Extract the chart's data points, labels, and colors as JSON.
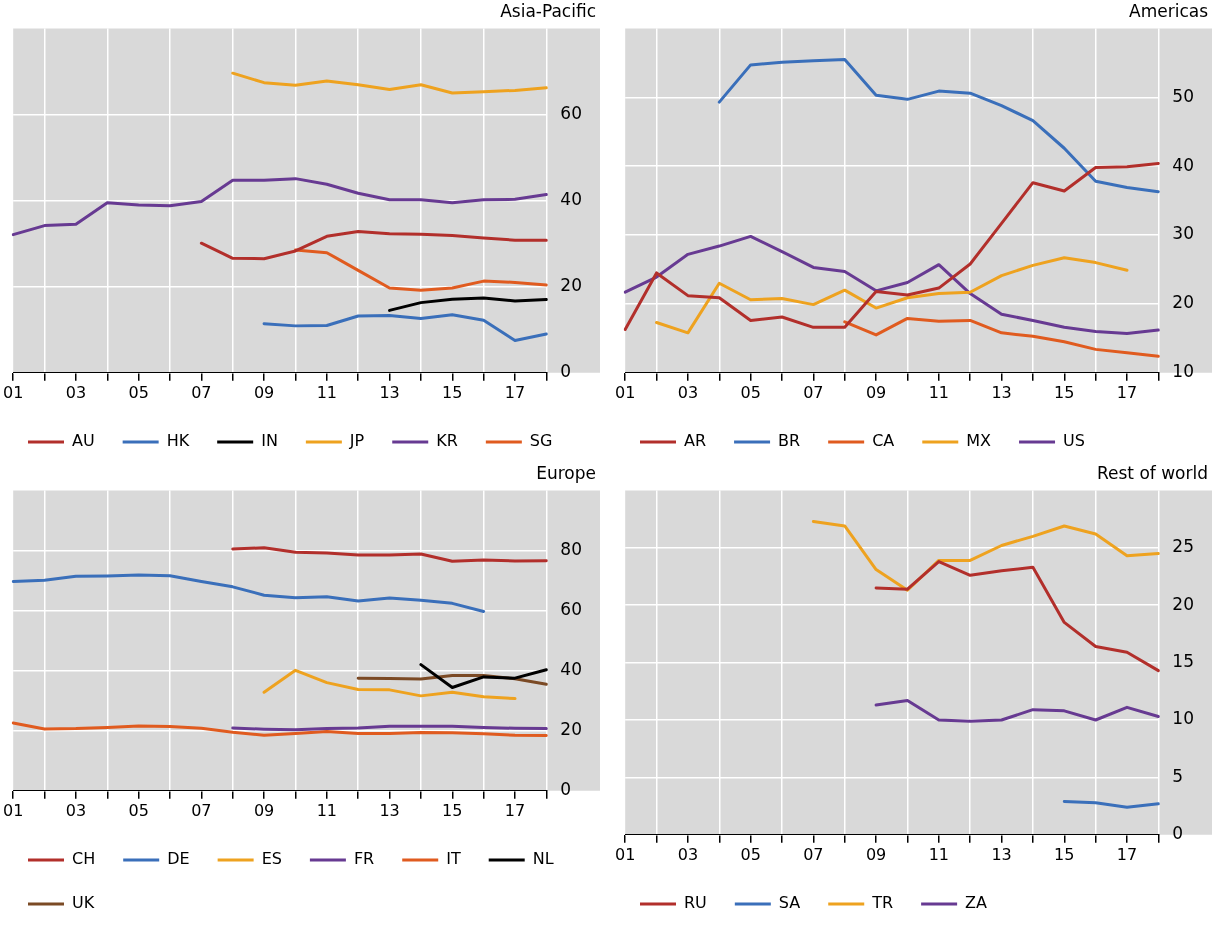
{
  "chart_data": [
    {
      "type": "line",
      "title": "Asia-Pacific",
      "categories": [
        "01",
        null,
        "03",
        null,
        "05",
        null,
        "07",
        null,
        "09",
        null,
        "11",
        null,
        "13",
        null,
        "15",
        null,
        "17",
        null
      ],
      "ylim": [
        0,
        80
      ],
      "yticks": [
        0,
        20,
        40,
        60
      ],
      "grid": true,
      "legend": "bottom",
      "series": [
        {
          "name": "AU",
          "color": "#b22f2b",
          "values": [
            null,
            null,
            null,
            null,
            null,
            null,
            30.1,
            26.6,
            26.5,
            28.3,
            31.7,
            32.8,
            32.3,
            32.2,
            31.9,
            31.3,
            30.8,
            30.8
          ]
        },
        {
          "name": "HK",
          "color": "#3a6fba",
          "values": [
            null,
            null,
            null,
            null,
            null,
            null,
            null,
            null,
            11.4,
            10.9,
            11.0,
            13.2,
            13.3,
            12.6,
            13.5,
            12.2,
            7.5,
            9.0
          ]
        },
        {
          "name": "IN",
          "color": "#000000",
          "values": [
            null,
            null,
            null,
            null,
            null,
            null,
            null,
            null,
            null,
            null,
            null,
            null,
            14.5,
            16.3,
            17.1,
            17.4,
            16.7,
            17.0
          ]
        },
        {
          "name": "JP",
          "color": "#eea21f",
          "values": [
            null,
            null,
            null,
            null,
            null,
            null,
            null,
            69.6,
            67.4,
            66.8,
            67.8,
            66.9,
            65.8,
            66.9,
            65.0,
            65.3,
            65.6,
            66.2
          ]
        },
        {
          "name": "KR",
          "color": "#673a92",
          "values": [
            32.1,
            34.2,
            34.5,
            39.5,
            39.0,
            38.8,
            39.8,
            44.7,
            44.7,
            45.1,
            43.8,
            41.7,
            40.2,
            40.2,
            39.5,
            40.2,
            40.3,
            41.4
          ]
        },
        {
          "name": "SG",
          "color": "#e05b1f",
          "values": [
            null,
            null,
            null,
            null,
            null,
            null,
            null,
            null,
            null,
            28.5,
            27.9,
            23.8,
            19.7,
            19.2,
            19.7,
            21.3,
            21.0,
            20.4
          ]
        }
      ]
    },
    {
      "type": "line",
      "title": "Americas",
      "categories": [
        "01",
        null,
        "03",
        null,
        "05",
        null,
        "07",
        null,
        "09",
        null,
        "11",
        null,
        "13",
        null,
        "15",
        null,
        "17",
        null
      ],
      "ylim": [
        10,
        60
      ],
      "yticks": [
        10,
        20,
        30,
        40,
        50
      ],
      "grid": true,
      "legend": "bottom",
      "series": [
        {
          "name": "AR",
          "color": "#b22f2b",
          "values": [
            16.3,
            24.5,
            21.2,
            20.9,
            17.6,
            18.1,
            16.6,
            16.6,
            21.8,
            21.3,
            22.3,
            25.8,
            31.7,
            37.6,
            36.4,
            39.8,
            39.9,
            40.4
          ]
        },
        {
          "name": "BR",
          "color": "#3a6fba",
          "values": [
            null,
            null,
            null,
            49.3,
            54.7,
            55.1,
            55.3,
            55.5,
            50.3,
            49.7,
            50.9,
            50.6,
            48.8,
            46.6,
            42.6,
            37.8,
            36.9,
            36.3
          ]
        },
        {
          "name": "CA",
          "color": "#e05b1f",
          "values": [
            null,
            null,
            null,
            null,
            null,
            null,
            null,
            17.4,
            15.5,
            17.9,
            17.5,
            17.6,
            15.8,
            15.3,
            14.5,
            13.4,
            12.9,
            12.4
          ]
        },
        {
          "name": "MX",
          "color": "#eea21f",
          "values": [
            null,
            17.3,
            15.8,
            23.0,
            20.6,
            20.8,
            19.9,
            22.0,
            19.4,
            20.9,
            21.5,
            21.7,
            24.1,
            25.6,
            26.7,
            26.0,
            24.9,
            null
          ]
        },
        {
          "name": "US",
          "color": "#673a92",
          "values": [
            21.7,
            23.9,
            27.2,
            28.4,
            29.8,
            27.6,
            25.3,
            24.7,
            21.9,
            23.1,
            25.7,
            21.5,
            18.5,
            17.6,
            16.6,
            16.0,
            15.7,
            16.2
          ]
        }
      ]
    },
    {
      "type": "line",
      "title": "Europe",
      "categories": [
        "01",
        null,
        "03",
        null,
        "05",
        null,
        "07",
        null,
        "09",
        null,
        "11",
        null,
        "13",
        null,
        "15",
        null,
        "17",
        null
      ],
      "ylim": [
        0,
        100
      ],
      "yticks": [
        0,
        20,
        40,
        60,
        80
      ],
      "grid": true,
      "legend": "bottom",
      "series": [
        {
          "name": "CH",
          "color": "#b22f2b",
          "values": [
            null,
            null,
            null,
            null,
            null,
            null,
            null,
            80.5,
            80.9,
            79.4,
            79.2,
            78.5,
            78.5,
            78.8,
            76.4,
            76.8,
            76.5,
            76.6
          ]
        },
        {
          "name": "DE",
          "color": "#3a6fba",
          "values": [
            69.7,
            70.1,
            71.4,
            71.5,
            71.8,
            71.6,
            69.7,
            67.9,
            65.1,
            64.3,
            64.6,
            63.2,
            64.2,
            63.4,
            62.4,
            59.7,
            null,
            null
          ]
        },
        {
          "name": "ES",
          "color": "#eea21f",
          "values": [
            null,
            null,
            null,
            null,
            null,
            null,
            null,
            null,
            32.8,
            40.1,
            36.0,
            33.7,
            33.6,
            31.6,
            32.8,
            31.3,
            30.7,
            null
          ]
        },
        {
          "name": "FR",
          "color": "#673a92",
          "values": [
            null,
            null,
            null,
            null,
            null,
            null,
            null,
            20.9,
            20.5,
            20.3,
            20.7,
            20.9,
            21.5,
            21.5,
            21.5,
            21.1,
            20.8,
            20.7
          ]
        },
        {
          "name": "IT",
          "color": "#e05b1f",
          "values": [
            22.6,
            20.6,
            20.7,
            21.1,
            21.6,
            21.4,
            20.8,
            19.5,
            18.5,
            19.1,
            19.7,
            19.1,
            19.1,
            19.4,
            19.3,
            19.0,
            18.5,
            18.4
          ]
        },
        {
          "name": "NL",
          "color": "#000000",
          "values": [
            null,
            null,
            null,
            null,
            null,
            null,
            null,
            null,
            null,
            null,
            null,
            null,
            null,
            42.0,
            34.4,
            37.9,
            37.5,
            40.3
          ]
        },
        {
          "name": "UK",
          "color": "#7b4a25",
          "values": [
            null,
            null,
            null,
            null,
            null,
            null,
            null,
            null,
            null,
            null,
            null,
            37.5,
            37.4,
            37.2,
            38.4,
            38.4,
            37.3,
            35.5
          ]
        }
      ]
    },
    {
      "type": "line",
      "title": "Rest of world",
      "categories": [
        "01",
        null,
        "03",
        null,
        "05",
        null,
        "07",
        null,
        "09",
        null,
        "11",
        null,
        "13",
        null,
        "15",
        null,
        "17",
        null
      ],
      "ylim": [
        0,
        30
      ],
      "yticks": [
        0,
        5,
        10,
        15,
        20,
        25
      ],
      "grid": true,
      "legend": "bottom",
      "series": [
        {
          "name": "RU",
          "color": "#b22f2b",
          "values": [
            null,
            null,
            null,
            null,
            null,
            null,
            null,
            null,
            21.5,
            21.4,
            23.8,
            22.6,
            23.0,
            23.3,
            18.5,
            16.4,
            15.9,
            14.3
          ]
        },
        {
          "name": "SA",
          "color": "#3a6fba",
          "values": [
            null,
            null,
            null,
            null,
            null,
            null,
            null,
            null,
            null,
            null,
            null,
            null,
            null,
            null,
            2.9,
            2.8,
            2.4,
            2.7
          ]
        },
        {
          "name": "TR",
          "color": "#eea21f",
          "values": [
            null,
            null,
            null,
            null,
            null,
            null,
            27.3,
            26.9,
            23.1,
            21.3,
            23.9,
            23.9,
            25.2,
            26.0,
            26.9,
            26.2,
            24.3,
            24.5
          ]
        },
        {
          "name": "ZA",
          "color": "#673a92",
          "values": [
            null,
            null,
            null,
            null,
            null,
            null,
            null,
            null,
            11.3,
            11.7,
            10.0,
            9.9,
            10.0,
            10.9,
            10.8,
            10.0,
            11.1,
            10.3
          ]
        }
      ]
    }
  ]
}
